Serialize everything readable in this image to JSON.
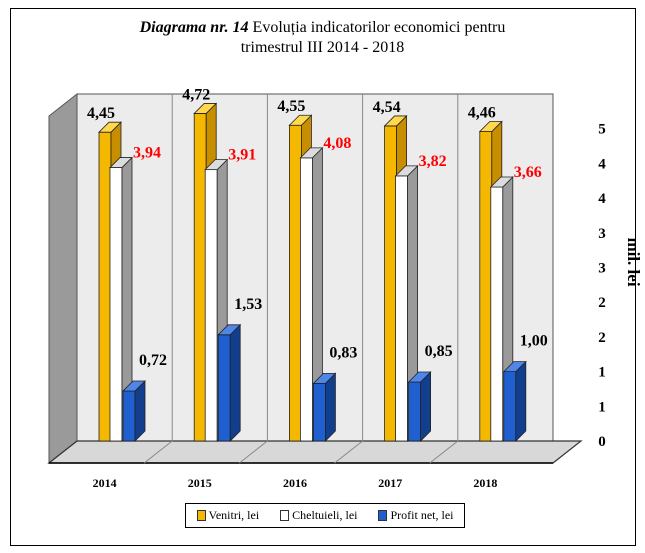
{
  "chart_data": {
    "type": "bar",
    "title_lead": "Diagrama nr. 14",
    "title": "Evoluția indicatorilor economici pentru",
    "title_line2": "trimestrul III  2014 - 2018",
    "ylabel": "mil. lei",
    "categories": [
      "2014",
      "2015",
      "2016",
      "2017",
      "2018"
    ],
    "ylim": [
      0,
      5
    ],
    "y_tick_labels": [
      "0",
      "1",
      "1",
      "2",
      "2",
      "3",
      "3",
      "4",
      "4",
      "5"
    ],
    "series": [
      {
        "name": "Venitri, lei",
        "values": [
          4.45,
          4.72,
          4.55,
          4.54,
          4.46
        ],
        "labels": [
          "4,45",
          "4,72",
          "4,55",
          "4,54",
          "4,46"
        ],
        "color": "#F5B800",
        "label_color": "#000000"
      },
      {
        "name": "Cheltuieli, lei",
        "values": [
          3.94,
          3.91,
          4.08,
          3.82,
          3.66
        ],
        "labels": [
          "3,94",
          "3,91",
          "4,08",
          "3,82",
          "3,66"
        ],
        "color": "#FFFFFF",
        "label_color": "#FF0000"
      },
      {
        "name": "Profit net, lei",
        "values": [
          0.72,
          1.53,
          0.83,
          0.85,
          1.0
        ],
        "labels": [
          "0,72",
          "1,53",
          "0,83",
          "0,85",
          "1,00"
        ],
        "color": "#1F5FD0",
        "label_color": "#000000"
      }
    ],
    "legend_position": "bottom",
    "grid": true
  }
}
